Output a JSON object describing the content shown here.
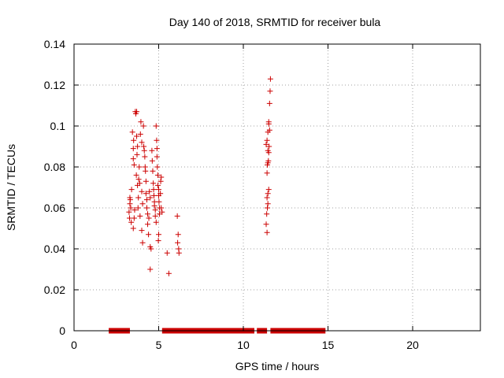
{
  "chart_data": {
    "type": "scatter",
    "title": "Day 140 of 2018, SRMTID for receiver bula",
    "xlabel": "GPS time / hours",
    "ylabel": "SRMTID / TECUs",
    "xlim": [
      0,
      24
    ],
    "ylim": [
      0,
      0.14
    ],
    "x_ticks": [
      0,
      5,
      10,
      15,
      20
    ],
    "x_tick_labels": [
      "0",
      "5",
      "10",
      "15",
      "20"
    ],
    "y_ticks": [
      0,
      0.02,
      0.04,
      0.06,
      0.08,
      0.1,
      0.12,
      0.14
    ],
    "y_tick_labels": [
      "0",
      "0.02",
      "0.04",
      "0.06",
      "0.08",
      "0.1",
      "0.12",
      "0.14"
    ],
    "grid": true,
    "marker": "+",
    "color": "#cc0000",
    "zero_bands": [
      [
        2.05,
        3.3
      ],
      [
        5.2,
        10.65
      ],
      [
        10.8,
        11.4
      ],
      [
        11.6,
        14.85
      ]
    ],
    "series": [
      {
        "name": "SRMTID",
        "points": [
          [
            3.25,
            0.058
          ],
          [
            3.3,
            0.062
          ],
          [
            3.28,
            0.055
          ],
          [
            3.32,
            0.064
          ],
          [
            3.35,
            0.06
          ],
          [
            3.3,
            0.065
          ],
          [
            3.38,
            0.053
          ],
          [
            3.4,
            0.069
          ],
          [
            3.45,
            0.097
          ],
          [
            3.5,
            0.089
          ],
          [
            3.5,
            0.084
          ],
          [
            3.52,
            0.093
          ],
          [
            3.55,
            0.081
          ],
          [
            3.5,
            0.05
          ],
          [
            3.58,
            0.059
          ],
          [
            3.55,
            0.055
          ],
          [
            3.62,
            0.107
          ],
          [
            3.65,
            0.106
          ],
          [
            3.7,
            0.107
          ],
          [
            3.7,
            0.095
          ],
          [
            3.75,
            0.09
          ],
          [
            3.72,
            0.086
          ],
          [
            3.68,
            0.076
          ],
          [
            3.75,
            0.071
          ],
          [
            3.8,
            0.065
          ],
          [
            3.78,
            0.06
          ],
          [
            3.85,
            0.08
          ],
          [
            3.82,
            0.074
          ],
          [
            3.88,
            0.072
          ],
          [
            3.9,
            0.056
          ],
          [
            3.95,
            0.102
          ],
          [
            3.92,
            0.096
          ],
          [
            4.0,
            0.092
          ],
          [
            4.0,
            0.068
          ],
          [
            4.05,
            0.062
          ],
          [
            4.0,
            0.049
          ],
          [
            4.05,
            0.043
          ],
          [
            4.1,
            0.1
          ],
          [
            4.12,
            0.09
          ],
          [
            4.15,
            0.088
          ],
          [
            4.18,
            0.085
          ],
          [
            4.2,
            0.08
          ],
          [
            4.22,
            0.078
          ],
          [
            4.25,
            0.073
          ],
          [
            4.25,
            0.067
          ],
          [
            4.3,
            0.064
          ],
          [
            4.3,
            0.06
          ],
          [
            4.35,
            0.057
          ],
          [
            4.35,
            0.052
          ],
          [
            4.4,
            0.047
          ],
          [
            4.42,
            0.055
          ],
          [
            4.45,
            0.068
          ],
          [
            4.5,
            0.065
          ],
          [
            4.5,
            0.041
          ],
          [
            4.55,
            0.04
          ],
          [
            4.5,
            0.03
          ],
          [
            4.6,
            0.088
          ],
          [
            4.62,
            0.083
          ],
          [
            4.65,
            0.078
          ],
          [
            4.68,
            0.072
          ],
          [
            4.7,
            0.069
          ],
          [
            4.72,
            0.066
          ],
          [
            4.75,
            0.063
          ],
          [
            4.75,
            0.061
          ],
          [
            4.8,
            0.059
          ],
          [
            4.8,
            0.056
          ],
          [
            4.85,
            0.053
          ],
          [
            4.85,
            0.1
          ],
          [
            4.88,
            0.093
          ],
          [
            4.9,
            0.089
          ],
          [
            4.9,
            0.085
          ],
          [
            4.92,
            0.08
          ],
          [
            4.95,
            0.076
          ],
          [
            4.95,
            0.071
          ],
          [
            5.0,
            0.069
          ],
          [
            5.0,
            0.066
          ],
          [
            5.02,
            0.063
          ],
          [
            5.05,
            0.06
          ],
          [
            5.05,
            0.057
          ],
          [
            5.0,
            0.047
          ],
          [
            4.98,
            0.044
          ],
          [
            5.1,
            0.067
          ],
          [
            5.12,
            0.073
          ],
          [
            5.15,
            0.075
          ],
          [
            5.15,
            0.06
          ],
          [
            5.2,
            0.058
          ],
          [
            5.5,
            0.038
          ],
          [
            5.6,
            0.028
          ],
          [
            6.1,
            0.056
          ],
          [
            6.15,
            0.047
          ],
          [
            6.12,
            0.043
          ],
          [
            6.18,
            0.04
          ],
          [
            6.2,
            0.038
          ],
          [
            11.35,
            0.052
          ],
          [
            11.4,
            0.048
          ],
          [
            11.38,
            0.057
          ],
          [
            11.42,
            0.06
          ],
          [
            11.45,
            0.062
          ],
          [
            11.4,
            0.065
          ],
          [
            11.45,
            0.067
          ],
          [
            11.5,
            0.069
          ],
          [
            11.4,
            0.077
          ],
          [
            11.42,
            0.081
          ],
          [
            11.45,
            0.082
          ],
          [
            11.48,
            0.083
          ],
          [
            11.5,
            0.087
          ],
          [
            11.35,
            0.091
          ],
          [
            11.4,
            0.093
          ],
          [
            11.45,
            0.097
          ],
          [
            11.5,
            0.101
          ],
          [
            11.55,
            0.098
          ],
          [
            11.52,
            0.09
          ],
          [
            11.5,
            0.102
          ],
          [
            11.55,
            0.111
          ],
          [
            11.58,
            0.117
          ],
          [
            11.6,
            0.123
          ],
          [
            11.45,
            0.088
          ]
        ]
      }
    ]
  }
}
